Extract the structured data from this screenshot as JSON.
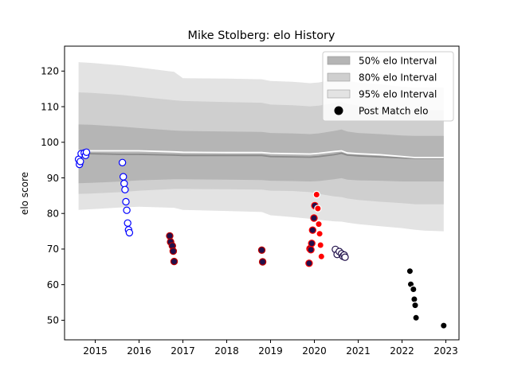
{
  "chart_data": {
    "type": "scatter",
    "title": "Mike Stolberg: elo History",
    "xlabel": "",
    "ylabel": "elo score",
    "xlim": [
      2014.3,
      2023.3
    ],
    "ylim": [
      44.5,
      127
    ],
    "x_ticks": [
      2015,
      2016,
      2017,
      2018,
      2019,
      2020,
      2021,
      2022,
      2023
    ],
    "y_ticks": [
      50,
      60,
      70,
      80,
      90,
      100,
      110,
      120
    ],
    "grid": false,
    "legend_position": "top-right",
    "legend": {
      "interval_50": "50% elo Interval",
      "interval_80": "80% elo Interval",
      "interval_95": "95% elo Interval",
      "post_match": "Post Match elo"
    },
    "bands": {
      "x": [
        2014.62,
        2014.9,
        2015.6,
        2016.0,
        2016.8,
        2017.0,
        2018.0,
        2018.8,
        2019.0,
        2019.5,
        2019.9,
        2020.1,
        2020.45,
        2020.62,
        2020.75,
        2021.0,
        2021.5,
        2022.0,
        2022.3,
        2022.5,
        2022.95
      ],
      "p50_high": [
        105,
        104.9,
        104.4,
        104,
        103.3,
        103.2,
        103,
        102.9,
        102.6,
        102.5,
        102.3,
        102.5,
        103.2,
        103.6,
        103,
        102.6,
        102.3,
        101.9,
        101.8,
        101.8,
        101.8
      ],
      "p50_low": [
        88.5,
        88.6,
        89.0,
        89.3,
        89.6,
        89.6,
        89.5,
        89.4,
        89.2,
        89.1,
        89.0,
        89.1,
        89.6,
        89.9,
        89.5,
        89.3,
        89.2,
        89.0,
        89.0,
        89.0,
        89.0
      ],
      "p80_high": [
        114,
        113.9,
        113.3,
        112.8,
        111.8,
        111.6,
        111.3,
        111.1,
        110.6,
        110.4,
        110.1,
        110.3,
        111.0,
        111.4,
        110.8,
        110.3,
        109.8,
        109.2,
        109.0,
        109.0,
        109.0
      ],
      "p80_low": [
        85.5,
        85.6,
        86.0,
        86.4,
        86.9,
        86.9,
        86.8,
        86.7,
        86.4,
        86.3,
        86.0,
        85.5,
        84.8,
        84.6,
        84.2,
        83.8,
        83.3,
        82.9,
        82.6,
        82.6,
        82.6
      ],
      "p95_high": [
        122.5,
        122.3,
        121.6,
        121.0,
        119.8,
        118.0,
        117.9,
        117.7,
        117.2,
        117.0,
        116.6,
        116.8,
        117.6,
        118.0,
        117.3,
        116.8,
        116.3,
        115.6,
        115.4,
        115.4,
        115.4
      ],
      "p95_low": [
        81,
        81.2,
        81.7,
        81.9,
        81.6,
        81.0,
        80.7,
        80.4,
        79.5,
        79.0,
        78.5,
        78.2,
        77.8,
        77.7,
        77.4,
        77.0,
        76.4,
        75.9,
        75.4,
        75.2,
        75.0
      ],
      "median": [
        96.8,
        96.8,
        96.6,
        96.6,
        96.4,
        96.3,
        96.3,
        96.3,
        96.0,
        95.9,
        95.8,
        96.0,
        96.5,
        96.9,
        96.4,
        96.2,
        95.9,
        95.6,
        95.5,
        95.5,
        95.5
      ],
      "mean": [
        97.6,
        97.6,
        97.6,
        97.6,
        97.3,
        97.2,
        97.1,
        97.1,
        96.9,
        96.8,
        96.7,
        96.9,
        97.4,
        97.6,
        97.0,
        96.8,
        96.5,
        96.0,
        95.7,
        95.7,
        95.7
      ]
    },
    "series": [
      {
        "color": "#0000ff",
        "fill": "#ffffff",
        "points": [
          [
            2014.62,
            95.2
          ],
          [
            2014.64,
            93.8
          ],
          [
            2014.66,
            94.6
          ],
          [
            2014.68,
            96.8
          ],
          [
            2014.75,
            97.0
          ],
          [
            2014.78,
            96.3
          ],
          [
            2014.8,
            97.2
          ],
          [
            2015.62,
            94.3
          ],
          [
            2015.64,
            90.3
          ],
          [
            2015.66,
            88.4
          ],
          [
            2015.68,
            86.7
          ],
          [
            2015.7,
            83.3
          ],
          [
            2015.72,
            80.9
          ],
          [
            2015.74,
            77.3
          ],
          [
            2015.76,
            75.4
          ],
          [
            2015.78,
            74.6
          ]
        ]
      },
      {
        "color": "#c00000",
        "fill": "#22104a",
        "points": [
          [
            2016.7,
            73.7
          ],
          [
            2016.72,
            72.0
          ],
          [
            2016.76,
            70.9
          ],
          [
            2016.78,
            69.4
          ],
          [
            2016.8,
            66.5
          ],
          [
            2018.8,
            69.7
          ],
          [
            2018.82,
            66.4
          ]
        ]
      },
      {
        "color": "#ff0000",
        "fill": "#22104a",
        "points": [
          [
            2019.88,
            66.0
          ],
          [
            2019.9,
            70.1
          ],
          [
            2019.92,
            69.8
          ],
          [
            2019.94,
            71.6
          ],
          [
            2019.96,
            75.3
          ],
          [
            2019.99,
            78.7
          ],
          [
            2020.01,
            82.2
          ]
        ]
      },
      {
        "color": "#ffffff",
        "fill": "#ff0000",
        "points": [
          [
            2020.05,
            85.3
          ],
          [
            2020.08,
            81.4
          ],
          [
            2020.1,
            77.0
          ],
          [
            2020.12,
            74.3
          ],
          [
            2020.14,
            71.1
          ],
          [
            2020.16,
            67.9
          ]
        ]
      },
      {
        "color": "#20104a",
        "fill": "#ffffff",
        "points": [
          [
            2020.48,
            69.9
          ],
          [
            2020.52,
            68.5
          ],
          [
            2020.57,
            69.3
          ],
          [
            2020.62,
            68.7
          ],
          [
            2020.65,
            68.0
          ],
          [
            2020.68,
            68.3
          ],
          [
            2020.7,
            67.7
          ]
        ]
      },
      {
        "color": "#ffffff",
        "fill": "#000000",
        "points": [
          [
            2022.18,
            63.8
          ],
          [
            2022.2,
            60.1
          ],
          [
            2022.26,
            58.7
          ],
          [
            2022.28,
            55.9
          ],
          [
            2022.3,
            54.2
          ],
          [
            2022.32,
            50.7
          ],
          [
            2022.95,
            48.5
          ]
        ]
      }
    ]
  }
}
